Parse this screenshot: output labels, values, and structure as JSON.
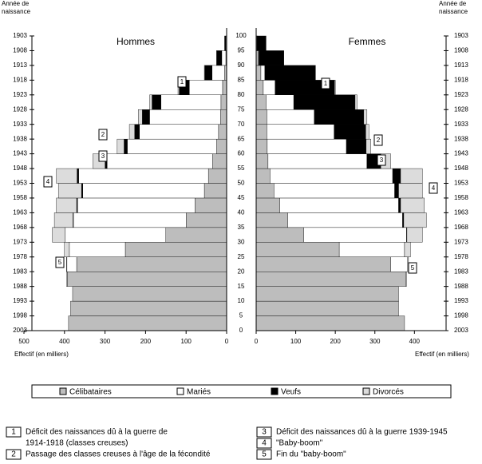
{
  "chart_data": [
    {
      "type": "stacked-barh",
      "title": "Hommes",
      "xlabel": "Effectif (en milliers)",
      "ylabel": [
        "Année de",
        "naissance"
      ],
      "y": [
        0,
        5,
        10,
        15,
        20,
        25,
        30,
        35,
        40,
        45,
        50,
        55,
        60,
        65,
        70,
        75,
        80,
        85,
        90,
        95
      ],
      "xlim": [
        500,
        0
      ],
      "xticks": [
        500,
        400,
        300,
        200,
        100,
        0
      ],
      "ylim": [
        0,
        100
      ],
      "yticks": [
        0,
        5,
        10,
        15,
        20,
        25,
        30,
        35,
        40,
        45,
        50,
        55,
        60,
        65,
        70,
        75,
        80,
        85,
        90,
        95,
        100
      ],
      "y2ticks": [
        {
          "value": 0,
          "label": "2003"
        },
        {
          "value": 5,
          "label": "1998"
        },
        {
          "value": 10,
          "label": "1993"
        },
        {
          "value": 15,
          "label": "1988"
        },
        {
          "value": 20,
          "label": "1983"
        },
        {
          "value": 25,
          "label": "1978"
        },
        {
          "value": 30,
          "label": "1973"
        },
        {
          "value": 35,
          "label": "1968"
        },
        {
          "value": 40,
          "label": "1963"
        },
        {
          "value": 45,
          "label": "1958"
        },
        {
          "value": 50,
          "label": "1953"
        },
        {
          "value": 55,
          "label": "1948"
        },
        {
          "value": 60,
          "label": "1943"
        },
        {
          "value": 65,
          "label": "1938"
        },
        {
          "value": 70,
          "label": "1933"
        },
        {
          "value": 75,
          "label": "1928"
        },
        {
          "value": 80,
          "label": "1923"
        },
        {
          "value": 85,
          "label": "1918"
        },
        {
          "value": 90,
          "label": "1913"
        },
        {
          "value": 95,
          "label": "1908"
        },
        {
          "value": 100,
          "label": "1903"
        }
      ],
      "series": [
        {
          "name": "Célibataires",
          "color": "#bdbdbd",
          "values": [
            390,
            385,
            380,
            393,
            370,
            250,
            150,
            100,
            78,
            55,
            45,
            35,
            25,
            20,
            15,
            14,
            10,
            5,
            2,
            0.5
          ]
        },
        {
          "name": "Mariés",
          "color": "#ffffff",
          "values": [
            0,
            0,
            0,
            2,
            24,
            138,
            248,
            278,
            290,
            300,
            320,
            260,
            220,
            195,
            175,
            148,
            82,
            31,
            10,
            1.5
          ]
        },
        {
          "name": "Veufs",
          "color": "#000000",
          "values": [
            0,
            0,
            0,
            0,
            0,
            0,
            0,
            1,
            2,
            3,
            4,
            5,
            8,
            12,
            18,
            22,
            25,
            18,
            12,
            3
          ]
        },
        {
          "name": "Divorcés",
          "color": "#dcdcdc",
          "values": [
            0,
            0,
            0,
            0,
            1,
            12,
            32,
            46,
            50,
            57,
            51,
            30,
            17,
            13,
            10,
            6,
            3,
            1,
            1,
            0
          ]
        }
      ]
    },
    {
      "type": "stacked-barh",
      "title": "Femmes",
      "xlabel": "Effectif (en milliers)",
      "ylabel": [
        "Année de",
        "naissance"
      ],
      "y": [
        0,
        5,
        10,
        15,
        20,
        25,
        30,
        35,
        40,
        45,
        50,
        55,
        60,
        65,
        70,
        75,
        80,
        85,
        90,
        95
      ],
      "xlim": [
        0,
        480
      ],
      "xticks": [
        0,
        100,
        200,
        300,
        400
      ],
      "y2ticks": [
        {
          "value": 0,
          "label": "2003"
        },
        {
          "value": 5,
          "label": "1998"
        },
        {
          "value": 10,
          "label": "1993"
        },
        {
          "value": 15,
          "label": "1988"
        },
        {
          "value": 20,
          "label": "1983"
        },
        {
          "value": 25,
          "label": "1978"
        },
        {
          "value": 30,
          "label": "1973"
        },
        {
          "value": 35,
          "label": "1968"
        },
        {
          "value": 40,
          "label": "1963"
        },
        {
          "value": 45,
          "label": "1958"
        },
        {
          "value": 50,
          "label": "1953"
        },
        {
          "value": 55,
          "label": "1948"
        },
        {
          "value": 60,
          "label": "1943"
        },
        {
          "value": 65,
          "label": "1938"
        },
        {
          "value": 70,
          "label": "1933"
        },
        {
          "value": 75,
          "label": "1928"
        },
        {
          "value": 80,
          "label": "1923"
        },
        {
          "value": 85,
          "label": "1918"
        },
        {
          "value": 90,
          "label": "1913"
        },
        {
          "value": 95,
          "label": "1908"
        },
        {
          "value": 100,
          "label": "1903"
        }
      ],
      "series": [
        {
          "color": "#bdbdbd",
          "values": [
            375,
            360,
            360,
            378,
            340,
            210,
            120,
            80,
            60,
            45,
            35,
            30,
            28,
            27,
            27,
            25,
            18,
            12,
            5,
            2
          ]
        },
        {
          "color": "#ffffff",
          "values": [
            0,
            0,
            0,
            2,
            43,
            165,
            260,
            290,
            300,
            305,
            310,
            250,
            200,
            170,
            120,
            70,
            30,
            10,
            2,
            0.5
          ]
        },
        {
          "color": "#000000",
          "values": [
            0,
            0,
            0,
            0,
            0,
            0,
            1,
            3,
            5,
            10,
            20,
            35,
            50,
            80,
            125,
            155,
            150,
            128,
            63,
            22.5
          ]
        },
        {
          "color": "#dcdcdc",
          "values": [
            0,
            0,
            0,
            0,
            2,
            15,
            39,
            57,
            60,
            60,
            55,
            25,
            12,
            8,
            8,
            5,
            2,
            0,
            0,
            0
          ]
        }
      ]
    }
  ],
  "notes": [
    {
      "number": "1",
      "lines": [
        "Déficit des naissances dû à la guerre de",
        "1914-1918 (classes creuses)"
      ]
    },
    {
      "number": "2",
      "lines": [
        "Passage des classes creuses à l'âge de la fécondité"
      ]
    },
    {
      "number": "3",
      "lines": [
        "Déficit des naissances dû à la guerre 1939-1945"
      ]
    },
    {
      "number": "4",
      "lines": [
        "\"Baby-boom\""
      ]
    },
    {
      "number": "5",
      "lines": [
        "Fin du \"baby-boom\""
      ]
    }
  ]
}
